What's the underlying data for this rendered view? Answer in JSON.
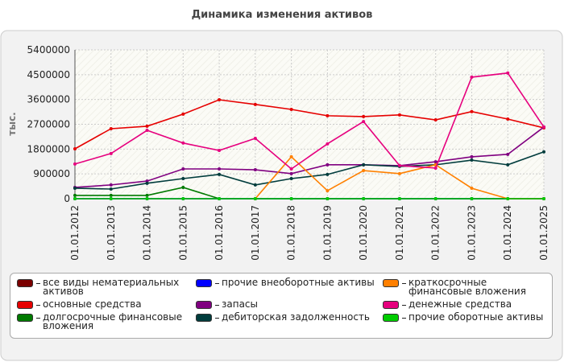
{
  "chart_data": {
    "type": "line",
    "title": "Динамика изменения активов",
    "y_label": "тыс.",
    "categories": [
      "01.01.2012",
      "01.01.2013",
      "01.01.2014",
      "01.01.2015",
      "01.01.2016",
      "01.01.2017",
      "01.01.2018",
      "01.01.2019",
      "01.01.2020",
      "01.01.2021",
      "01.01.2022",
      "01.01.2023",
      "01.01.2024",
      "01.01.2025"
    ],
    "ylim": [
      0,
      5400000
    ],
    "yticks": [
      0,
      900000,
      1800000,
      2700000,
      3600000,
      4500000,
      5400000
    ],
    "grid": true,
    "series": [
      {
        "name": "все виды нематериальных активов",
        "color": "#7b0000",
        "values": [
          0,
          0,
          0,
          0,
          0,
          0,
          0,
          0,
          0,
          0,
          0,
          0,
          0,
          0
        ]
      },
      {
        "name": "основные средства",
        "color": "#e60000",
        "values": [
          1810000,
          2540000,
          2630000,
          3070000,
          3590000,
          3420000,
          3240000,
          3010000,
          2980000,
          3040000,
          2860000,
          3160000,
          2890000,
          2570000
        ]
      },
      {
        "name": "долгосрочные финансовые вложения",
        "color": "#007a00",
        "values": [
          120000,
          120000,
          120000,
          410000,
          0,
          0,
          0,
          0,
          0,
          0,
          0,
          0,
          0,
          0
        ]
      },
      {
        "name": "прочие внеоборотные активы",
        "color": "#0000ff",
        "values": [
          0,
          0,
          0,
          0,
          0,
          0,
          0,
          0,
          0,
          0,
          0,
          0,
          0,
          0
        ]
      },
      {
        "name": "запасы",
        "color": "#800080",
        "values": [
          410000,
          500000,
          640000,
          1080000,
          1080000,
          1050000,
          910000,
          1230000,
          1230000,
          1200000,
          1340000,
          1520000,
          1610000,
          2600000
        ]
      },
      {
        "name": "дебиторская задолженность",
        "color": "#003c3c",
        "values": [
          380000,
          350000,
          560000,
          730000,
          880000,
          500000,
          730000,
          880000,
          1230000,
          1170000,
          1230000,
          1400000,
          1230000,
          1700000
        ]
      },
      {
        "name": "краткосрочные финансовые вложения",
        "color": "#ff8000",
        "values": [
          null,
          null,
          null,
          null,
          null,
          0,
          1520000,
          290000,
          1020000,
          910000,
          1230000,
          380000,
          0,
          0
        ]
      },
      {
        "name": "денежные средства",
        "color": "#e6007e",
        "values": [
          1260000,
          1640000,
          2480000,
          2020000,
          1750000,
          2190000,
          1080000,
          1990000,
          2800000,
          1200000,
          1110000,
          4410000,
          4560000,
          2600000
        ]
      },
      {
        "name": "прочие оборотные активы",
        "color": "#00cc00",
        "values": [
          0,
          0,
          0,
          0,
          0,
          0,
          0,
          0,
          0,
          0,
          0,
          0,
          0,
          0
        ]
      }
    ]
  }
}
